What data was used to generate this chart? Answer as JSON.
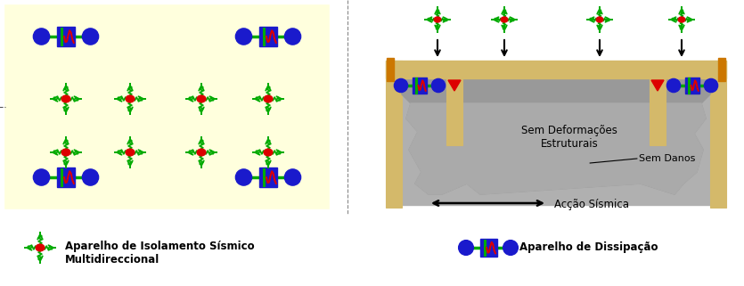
{
  "fig_width": 8.35,
  "fig_height": 3.21,
  "dpi": 100,
  "bg_color": "#ffffff",
  "left_bg": "#ffffee",
  "left_border": "#aaaaaa",
  "tan": "#d4b96a",
  "tan_dark": "#b8963e",
  "gray_light": "#b0b0b0",
  "gray_dark": "#888888",
  "gray_mid": "#999999",
  "red": "#dd0000",
  "blue": "#1a1acc",
  "green": "#00aa00",
  "black": "#000000",
  "legend1": "Aparelho de Isolamento Sísmico\nMultidireccional",
  "legend2": "Aparelho de Dissipação",
  "txt1": "Sem Deformações\nEstruturais",
  "txt2": "Sem Danos",
  "txt3": "Acção Sísmica"
}
